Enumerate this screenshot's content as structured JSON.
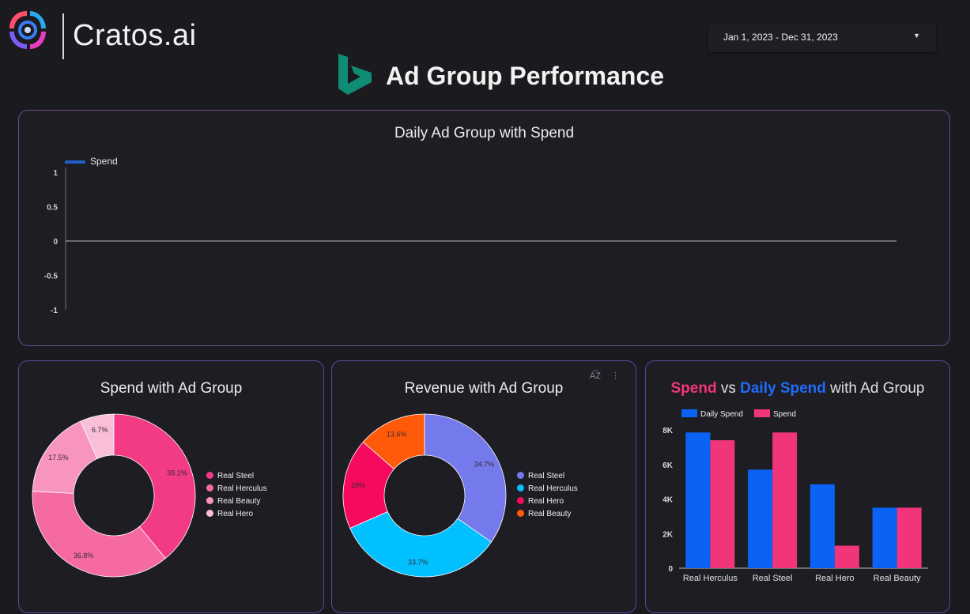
{
  "brand": {
    "name": "Cratos.ai",
    "logo_icon": "cratos-logo-icon"
  },
  "date_range": {
    "label": "Jan 1, 2023 - Dec 31, 2023",
    "caret_icon": "caret-down-icon"
  },
  "page": {
    "title": "Ad Group Performance",
    "title_icon": "bing-logo-icon"
  },
  "colors": {
    "pink_palette": [
      "#f23a85",
      "#f66aa3",
      "#f795c0",
      "#f9bed8"
    ],
    "revenue_palette": [
      "#7479eb",
      "#00c0ff",
      "#f50a5f",
      "#ff5a0a"
    ],
    "daily_spend": "#0b63f6",
    "spend": "#f0357a",
    "line": "#1f5fc8"
  },
  "chart_data": [
    {
      "type": "line",
      "title": "Daily Ad Group with Spend",
      "series": [
        {
          "name": "Spend",
          "values": []
        }
      ],
      "yticks": [
        "1",
        "0.5",
        "0",
        "-0.5",
        "-1"
      ],
      "ylim": [
        -1,
        1
      ],
      "legend": "top-left"
    },
    {
      "type": "pie",
      "title": "Spend with Ad Group",
      "labels": [
        "Real Steel",
        "Real Herculus",
        "Real Beauty",
        "Real Hero"
      ],
      "values": [
        39.1,
        36.8,
        17.5,
        6.7
      ],
      "value_labels": [
        "39.1%",
        "36.8%",
        "17.5%",
        "6.7%"
      ],
      "legend": "right"
    },
    {
      "type": "pie",
      "title": "Revenue with Ad Group",
      "labels": [
        "Real Steel",
        "Real Herculus",
        "Real Hero",
        "Real Beauty"
      ],
      "values": [
        34.7,
        33.7,
        18,
        13.6
      ],
      "value_labels": [
        "34.7%",
        "33.7%",
        "18%",
        "13.6%"
      ],
      "legend": "right"
    },
    {
      "type": "bar",
      "title_parts": [
        "Spend",
        " vs ",
        "Daily Spend",
        " with Ad Group"
      ],
      "categories": [
        "Real Herculus",
        "Real Steel",
        "Real Hero",
        "Real Beauty"
      ],
      "series": [
        {
          "name": "Daily Spend",
          "values": [
            7850,
            5700,
            4850,
            3500
          ]
        },
        {
          "name": "Spend",
          "values": [
            7400,
            7850,
            1300,
            3500
          ]
        }
      ],
      "yticks": [
        "8K",
        "6K",
        "4K",
        "2K",
        "0"
      ],
      "ylim": [
        0,
        8000
      ],
      "legend": "top-left"
    }
  ],
  "revenue_tools": {
    "sort_icon": "sort-az-icon",
    "sort_label": "A͡Z",
    "more_icon": "more-vert-icon",
    "more_label": "⋮"
  }
}
